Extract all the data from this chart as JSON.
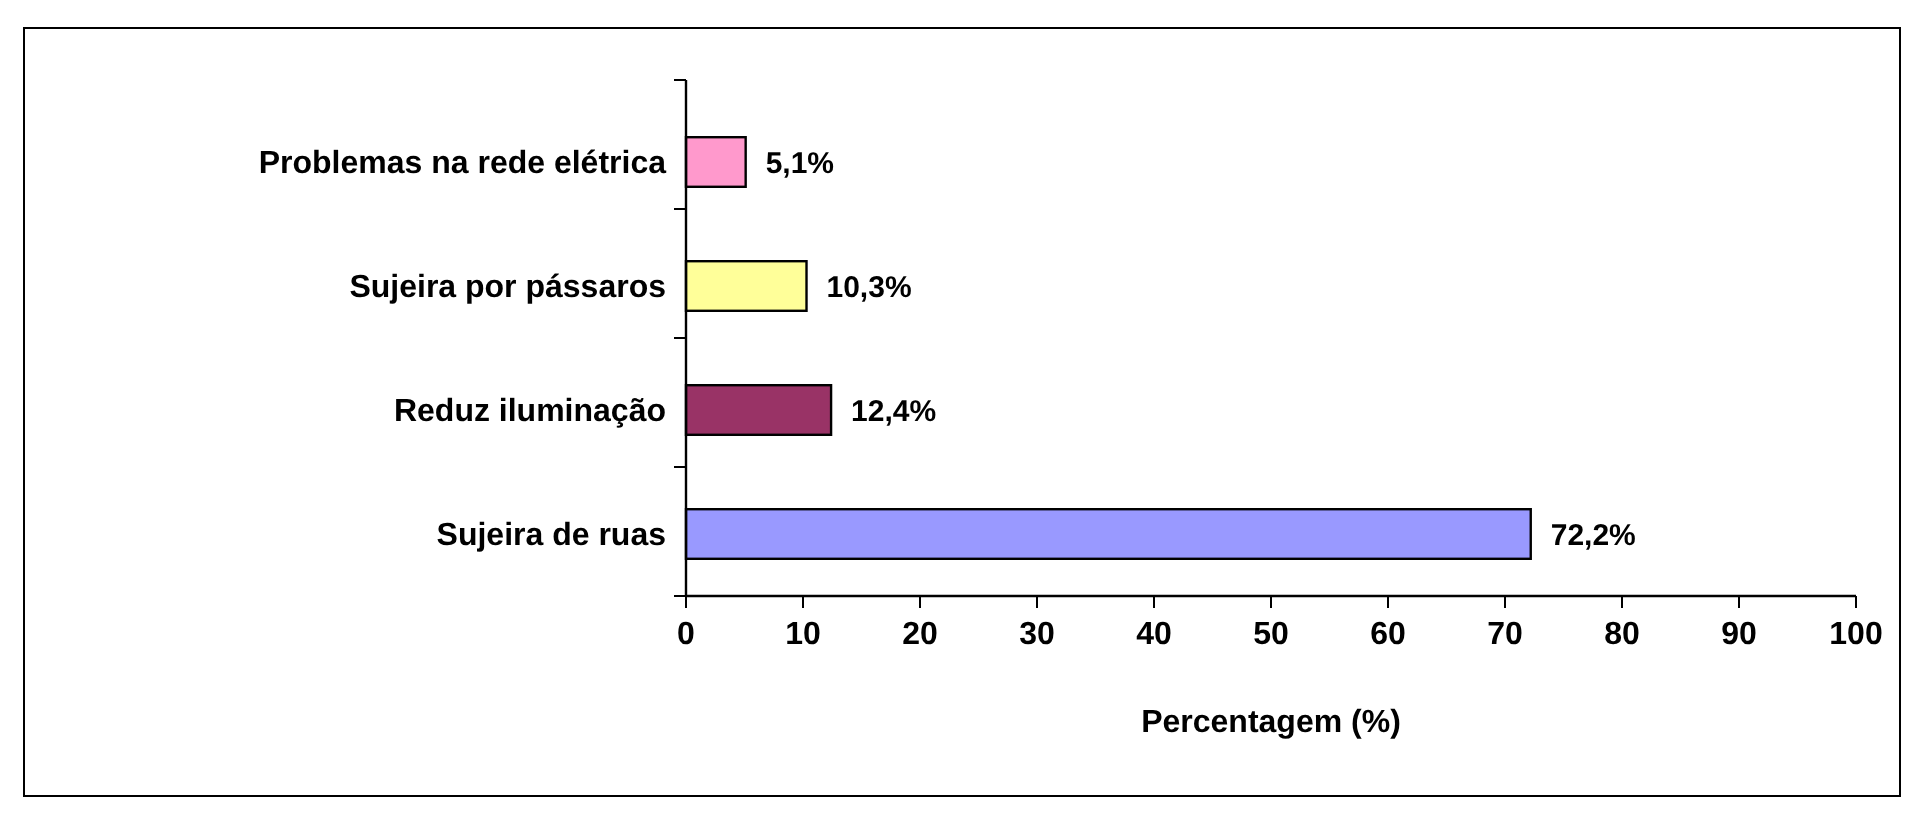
{
  "chart_data": {
    "type": "bar",
    "orientation": "horizontal",
    "xlabel": "Percentagem (%)",
    "categories": [
      "Problemas na rede elétrica",
      "Sujeira por pássaros",
      "Reduz iluminação",
      "Sujeira de ruas"
    ],
    "values": [
      5.1,
      10.3,
      12.4,
      72.2
    ],
    "colors": [
      "#ff99cc",
      "#ffff99",
      "#993366",
      "#9999ff"
    ],
    "value_labels": [
      "5,1%",
      "10,3%",
      "12,4%",
      "72,2%"
    ],
    "xlim": [
      0,
      100
    ],
    "xticks": [
      0,
      10,
      20,
      30,
      40,
      50,
      60,
      70,
      80,
      90,
      100
    ]
  }
}
